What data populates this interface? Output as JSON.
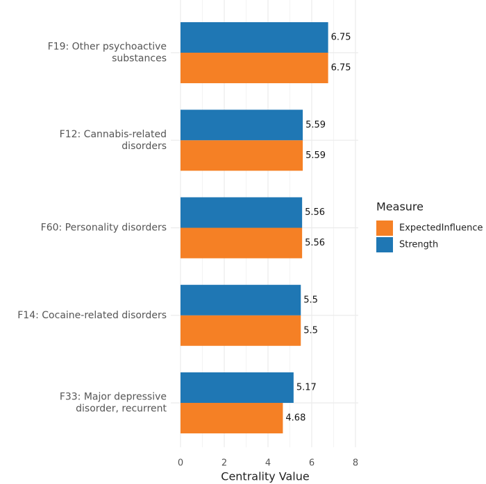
{
  "chart_data": {
    "type": "bar",
    "orientation": "horizontal",
    "xlabel": "Centrality Value",
    "categories": [
      "F19: Other psychoactive\nsubstances",
      "F12: Cannabis-related\ndisorders",
      "F60: Personality disorders",
      "F14: Cocaine-related disorders",
      "F33: Major depressive\ndisorder, recurrent"
    ],
    "series": [
      {
        "name": "ExpectedInfluence",
        "color": "#f58025",
        "values": [
          6.75,
          5.59,
          5.56,
          5.5,
          4.68
        ]
      },
      {
        "name": "Strength",
        "color": "#1f77b4",
        "values": [
          6.75,
          5.59,
          5.56,
          5.5,
          5.17
        ]
      }
    ],
    "xlim": [
      0,
      8
    ],
    "xticks": [
      0,
      2,
      4,
      6,
      8
    ],
    "grid": true,
    "legend_title": "Measure",
    "legend_position": "right"
  }
}
